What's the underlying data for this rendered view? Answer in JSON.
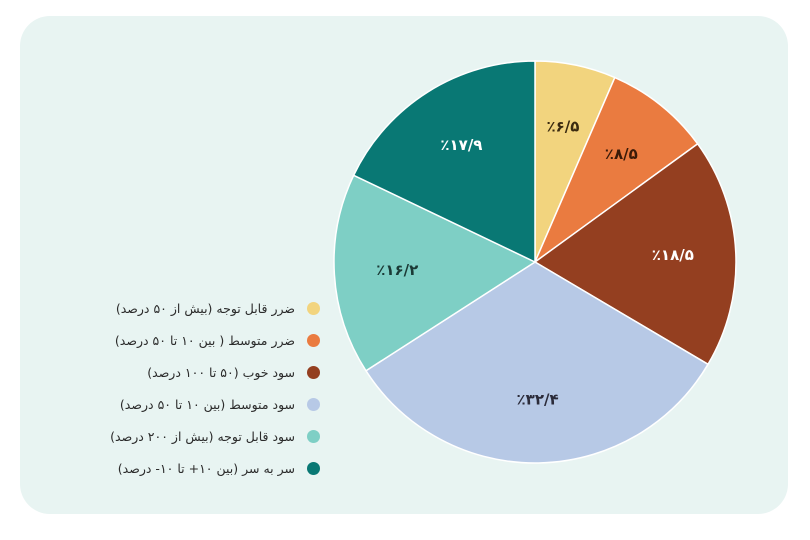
{
  "chart_data": {
    "type": "pie",
    "title": "",
    "start_angle_deg": 0,
    "direction": "clockwise",
    "legend_position": "left",
    "slices": [
      {
        "legend": "ضرر قابل توجه (بیش از ۵۰ درصد)",
        "value": 6.5,
        "label": "٪۶/۵",
        "color": "#f2d47e",
        "label_color": "#3a2a10"
      },
      {
        "legend": "ضرر متوسط ( بین ۱۰ تا ۵۰ درصد)",
        "value": 8.5,
        "label": "٪۸/۵",
        "color": "#ea7b40",
        "label_color": "#3a1a08"
      },
      {
        "legend": "سود خوب (۵۰ تا ۱۰۰ درصد)",
        "value": 18.5,
        "label": "٪۱۸/۵",
        "color": "#943f20",
        "label_color": "#ffffff"
      },
      {
        "legend": "سود متوسط (بین ۱۰ تا ۵۰ درصد)",
        "value": 32.4,
        "label": "٪۳۲/۴",
        "color": "#b7c9e6",
        "label_color": "#2b2b3a"
      },
      {
        "legend": "سود قابل توجه (بیش از ۲۰۰ درصد)",
        "value": 16.2,
        "label": "٪۱۶/۲",
        "color": "#7ecfc5",
        "label_color": "#1b3a36"
      },
      {
        "legend": "سر به سر (بین ۱۰+ تا ۱۰- درصد)",
        "value": 17.9,
        "label": "٪۱۷/۹",
        "color": "#097874",
        "label_color": "#ffffff"
      }
    ]
  }
}
